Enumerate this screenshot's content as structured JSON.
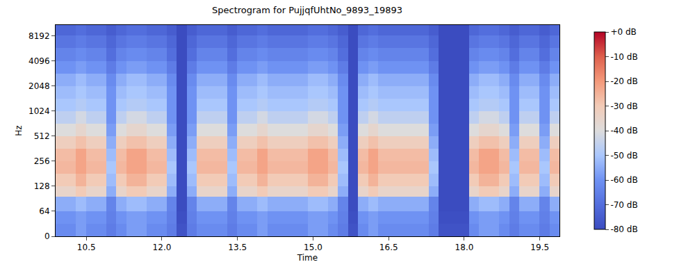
{
  "chart_data": {
    "type": "heatmap",
    "title": "Spectrogram for PujjqfUhtNo_9893_19893",
    "x_label": "Time",
    "y_label": "Hz",
    "log": "y",
    "xlim": [
      9.89,
      19.89
    ],
    "ylim": [
      0,
      11025
    ],
    "xticks": [
      10.5,
      {
        "value": 12,
        "label": "12.0"
      },
      13.5,
      {
        "value": 15,
        "label": "15.0"
      },
      16.5,
      {
        "value": 18,
        "label": "18.0"
      },
      19.5
    ],
    "yticks": [
      0,
      64,
      128,
      256,
      512,
      1024,
      2048,
      4096,
      8192
    ],
    "x_edges": [
      9.89,
      10.09,
      10.29,
      10.49,
      10.69,
      10.89,
      11.09,
      11.29,
      11.49,
      11.69,
      11.89,
      12.09,
      12.29,
      12.49,
      12.69,
      12.89,
      13.09,
      13.29,
      13.49,
      13.69,
      13.89,
      14.09,
      14.29,
      14.49,
      14.69,
      14.89,
      15.09,
      15.29,
      15.49,
      15.69,
      15.89,
      16.09,
      16.29,
      16.49,
      16.69,
      16.89,
      17.09,
      17.29,
      17.49,
      17.69,
      17.89,
      18.09,
      18.29,
      18.49,
      18.69,
      18.89,
      19.09,
      19.29,
      19.49,
      19.69,
      19.89
    ],
    "y_edges": [
      0,
      32,
      64,
      96,
      128,
      181,
      256,
      362,
      512,
      724,
      1024,
      1448,
      2048,
      2896,
      4096,
      5793,
      8192,
      11025
    ],
    "z": [
      [
        -62,
        -62,
        -58,
        -62,
        -62,
        -66,
        -62,
        -58,
        -58,
        -62,
        -62,
        -66,
        -78,
        -66,
        -62,
        -62,
        -62,
        -66,
        -62,
        -62,
        -58,
        -62,
        -62,
        -62,
        -62,
        -58,
        -58,
        -62,
        -66,
        -78,
        -62,
        -58,
        -62,
        -62,
        -62,
        -62,
        -62,
        -66,
        -78,
        -78,
        -78,
        -62,
        -58,
        -58,
        -62,
        -66,
        -62,
        -62,
        -66,
        -62
      ],
      [
        -60,
        -60,
        -58,
        -60,
        -60,
        -65,
        -60,
        -58,
        -58,
        -60,
        -60,
        -65,
        -79,
        -65,
        -60,
        -60,
        -60,
        -65,
        -60,
        -60,
        -58,
        -60,
        -60,
        -60,
        -60,
        -58,
        -58,
        -60,
        -65,
        -79,
        -60,
        -58,
        -60,
        -60,
        -60,
        -60,
        -60,
        -65,
        -79,
        -79,
        -79,
        -60,
        -58,
        -58,
        -60,
        -65,
        -60,
        -60,
        -65,
        -60
      ],
      [
        -55,
        -55,
        -52,
        -55,
        -55,
        -64,
        -55,
        -52,
        -52,
        -55,
        -55,
        -64,
        -80,
        -64,
        -55,
        -55,
        -55,
        -64,
        -55,
        -55,
        -52,
        -55,
        -55,
        -55,
        -55,
        -52,
        -52,
        -55,
        -64,
        -80,
        -55,
        -52,
        -55,
        -55,
        -55,
        -55,
        -55,
        -64,
        -80,
        -80,
        -80,
        -55,
        -52,
        -52,
        -55,
        -64,
        -55,
        -55,
        -64,
        -55
      ],
      [
        -35,
        -35,
        -30,
        -35,
        -35,
        -55,
        -35,
        -30,
        -30,
        -35,
        -35,
        -55,
        -80,
        -55,
        -35,
        -35,
        -35,
        -55,
        -35,
        -35,
        -30,
        -35,
        -35,
        -35,
        -35,
        -30,
        -30,
        -35,
        -55,
        -80,
        -35,
        -30,
        -35,
        -35,
        -35,
        -35,
        -35,
        -55,
        -80,
        -80,
        -80,
        -35,
        -30,
        -30,
        -35,
        -55,
        -35,
        -35,
        -55,
        -35
      ],
      [
        -30,
        -30,
        -25,
        -30,
        -30,
        -52,
        -30,
        -25,
        -25,
        -30,
        -30,
        -52,
        -80,
        -52,
        -30,
        -30,
        -30,
        -52,
        -30,
        -30,
        -25,
        -30,
        -30,
        -30,
        -30,
        -25,
        -25,
        -30,
        -52,
        -80,
        -30,
        -25,
        -30,
        -30,
        -30,
        -30,
        -30,
        -52,
        -80,
        -80,
        -80,
        -30,
        -25,
        -25,
        -30,
        -52,
        -30,
        -30,
        -52,
        -30
      ],
      [
        -26,
        -26,
        -22,
        -26,
        -26,
        -50,
        -26,
        -22,
        -22,
        -26,
        -26,
        -50,
        -80,
        -50,
        -26,
        -26,
        -26,
        -50,
        -26,
        -26,
        -22,
        -26,
        -26,
        -26,
        -26,
        -22,
        -22,
        -26,
        -50,
        -80,
        -26,
        -22,
        -26,
        -26,
        -26,
        -26,
        -26,
        -50,
        -80,
        -80,
        -80,
        -26,
        -22,
        -22,
        -26,
        -50,
        -26,
        -26,
        -50,
        -26
      ],
      [
        -27,
        -27,
        -22,
        -27,
        -27,
        -52,
        -27,
        -22,
        -22,
        -27,
        -27,
        -52,
        -80,
        -52,
        -27,
        -27,
        -27,
        -52,
        -27,
        -27,
        -22,
        -27,
        -27,
        -27,
        -27,
        -22,
        -22,
        -27,
        -52,
        -80,
        -27,
        -22,
        -27,
        -27,
        -27,
        -27,
        -27,
        -52,
        -80,
        -80,
        -80,
        -27,
        -22,
        -22,
        -27,
        -52,
        -27,
        -27,
        -52,
        -27
      ],
      [
        -32,
        -32,
        -28,
        -32,
        -32,
        -55,
        -32,
        -28,
        -28,
        -32,
        -32,
        -55,
        -80,
        -55,
        -32,
        -32,
        -32,
        -55,
        -32,
        -32,
        -28,
        -32,
        -32,
        -32,
        -32,
        -28,
        -28,
        -32,
        -55,
        -80,
        -32,
        -28,
        -32,
        -32,
        -32,
        -32,
        -32,
        -55,
        -80,
        -80,
        -80,
        -32,
        -28,
        -28,
        -32,
        -55,
        -32,
        -32,
        -55,
        -32
      ],
      [
        -40,
        -40,
        -36,
        -40,
        -40,
        -58,
        -40,
        -36,
        -36,
        -40,
        -40,
        -58,
        -80,
        -58,
        -40,
        -40,
        -40,
        -58,
        -40,
        -40,
        -36,
        -40,
        -40,
        -40,
        -40,
        -36,
        -36,
        -40,
        -58,
        -80,
        -40,
        -36,
        -40,
        -40,
        -40,
        -40,
        -40,
        -58,
        -80,
        -80,
        -80,
        -40,
        -36,
        -36,
        -40,
        -58,
        -40,
        -40,
        -58,
        -40
      ],
      [
        -46,
        -46,
        -42,
        -46,
        -46,
        -60,
        -46,
        -42,
        -42,
        -46,
        -46,
        -60,
        -80,
        -60,
        -46,
        -46,
        -46,
        -60,
        -46,
        -46,
        -42,
        -46,
        -46,
        -46,
        -46,
        -42,
        -42,
        -46,
        -60,
        -80,
        -46,
        -42,
        -46,
        -46,
        -46,
        -46,
        -46,
        -60,
        -80,
        -80,
        -80,
        -46,
        -42,
        -42,
        -46,
        -60,
        -46,
        -46,
        -60,
        -46
      ],
      [
        -50,
        -50,
        -48,
        -50,
        -50,
        -60,
        -50,
        -48,
        -48,
        -50,
        -50,
        -60,
        -80,
        -60,
        -50,
        -50,
        -50,
        -60,
        -50,
        -50,
        -48,
        -50,
        -50,
        -50,
        -50,
        -48,
        -48,
        -50,
        -60,
        -80,
        -50,
        -48,
        -50,
        -50,
        -50,
        -50,
        -50,
        -60,
        -80,
        -80,
        -80,
        -50,
        -48,
        -48,
        -50,
        -60,
        -50,
        -50,
        -60,
        -50
      ],
      [
        -52,
        -52,
        -50,
        -52,
        -52,
        -60,
        -52,
        -50,
        -50,
        -52,
        -52,
        -60,
        -80,
        -60,
        -52,
        -52,
        -52,
        -60,
        -52,
        -52,
        -50,
        -52,
        -52,
        -52,
        -52,
        -50,
        -50,
        -52,
        -60,
        -80,
        -52,
        -50,
        -52,
        -52,
        -52,
        -52,
        -52,
        -60,
        -80,
        -80,
        -80,
        -52,
        -50,
        -50,
        -52,
        -60,
        -52,
        -52,
        -60,
        -52
      ],
      [
        -55,
        -55,
        -52,
        -55,
        -55,
        -62,
        -55,
        -52,
        -52,
        -55,
        -55,
        -62,
        -80,
        -62,
        -55,
        -55,
        -55,
        -62,
        -55,
        -55,
        -52,
        -55,
        -55,
        -55,
        -55,
        -52,
        -52,
        -55,
        -62,
        -80,
        -55,
        -52,
        -55,
        -55,
        -55,
        -55,
        -55,
        -62,
        -80,
        -80,
        -80,
        -55,
        -52,
        -52,
        -55,
        -62,
        -55,
        -55,
        -62,
        -55
      ],
      [
        -60,
        -60,
        -58,
        -60,
        -60,
        -66,
        -60,
        -58,
        -58,
        -60,
        -60,
        -66,
        -80,
        -66,
        -60,
        -60,
        -60,
        -66,
        -60,
        -60,
        -58,
        -60,
        -60,
        -60,
        -60,
        -58,
        -58,
        -60,
        -66,
        -80,
        -60,
        -58,
        -60,
        -60,
        -60,
        -60,
        -60,
        -66,
        -80,
        -80,
        -80,
        -60,
        -58,
        -58,
        -60,
        -66,
        -60,
        -60,
        -66,
        -60
      ],
      [
        -64,
        -64,
        -62,
        -64,
        -64,
        -70,
        -64,
        -62,
        -62,
        -64,
        -64,
        -70,
        -80,
        -70,
        -64,
        -64,
        -64,
        -70,
        -64,
        -64,
        -62,
        -64,
        -64,
        -64,
        -64,
        -62,
        -62,
        -64,
        -70,
        -80,
        -64,
        -62,
        -64,
        -64,
        -64,
        -64,
        -64,
        -70,
        -80,
        -80,
        -80,
        -64,
        -62,
        -62,
        -64,
        -70,
        -64,
        -64,
        -70,
        -64
      ],
      [
        -68,
        -68,
        -66,
        -68,
        -68,
        -72,
        -68,
        -66,
        -66,
        -68,
        -68,
        -72,
        -80,
        -72,
        -68,
        -68,
        -68,
        -72,
        -68,
        -68,
        -66,
        -68,
        -68,
        -68,
        -68,
        -66,
        -66,
        -68,
        -72,
        -80,
        -68,
        -66,
        -68,
        -68,
        -68,
        -68,
        -68,
        -72,
        -80,
        -80,
        -80,
        -68,
        -66,
        -66,
        -68,
        -72,
        -68,
        -68,
        -72,
        -68
      ],
      [
        -72,
        -72,
        -70,
        -72,
        -72,
        -75,
        -72,
        -70,
        -70,
        -72,
        -72,
        -75,
        -80,
        -75,
        -72,
        -72,
        -72,
        -75,
        -72,
        -72,
        -70,
        -72,
        -72,
        -72,
        -72,
        -70,
        -70,
        -72,
        -75,
        -80,
        -72,
        -70,
        -72,
        -72,
        -72,
        -72,
        -72,
        -75,
        -80,
        -80,
        -80,
        -72,
        -70,
        -70,
        -72,
        -75,
        -72,
        -72,
        -75,
        -72
      ]
    ],
    "colorbar": {
      "range": [
        -80,
        0
      ],
      "ticks": [
        {
          "value": 0,
          "label": "+0 dB"
        },
        {
          "value": -10,
          "label": "-10 dB"
        },
        {
          "value": -20,
          "label": "-20 dB"
        },
        {
          "value": -30,
          "label": "-30 dB"
        },
        {
          "value": -40,
          "label": "-40 dB"
        },
        {
          "value": -50,
          "label": "-50 dB"
        },
        {
          "value": -60,
          "label": "-60 dB"
        },
        {
          "value": -70,
          "label": "-70 dB"
        },
        {
          "value": -80,
          "label": "-80 dB"
        }
      ]
    }
  }
}
